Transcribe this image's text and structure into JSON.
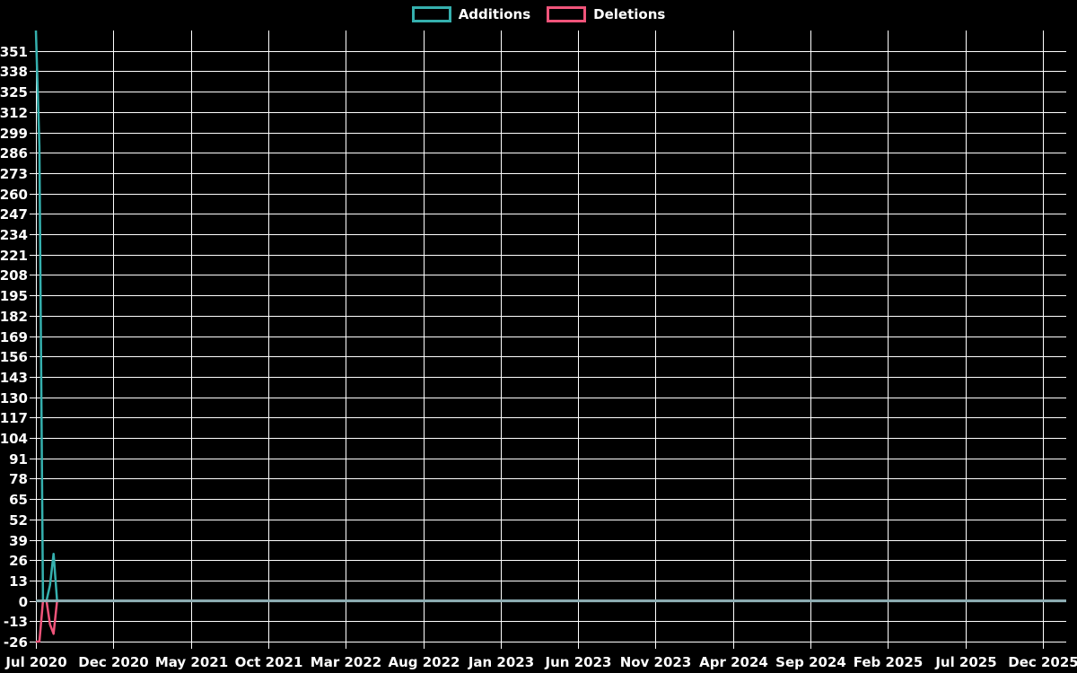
{
  "legend": {
    "items": [
      {
        "label": "Additions",
        "color": "#35b0ae"
      },
      {
        "label": "Deletions",
        "color": "#f0547a"
      }
    ]
  },
  "chart_data": {
    "type": "line",
    "title": "",
    "xlabel": "",
    "ylabel": "",
    "x_ticks": [
      "Jul 2020",
      "Dec 2020",
      "May 2021",
      "Oct 2021",
      "Mar 2022",
      "Aug 2022",
      "Jan 2023",
      "Jun 2023",
      "Nov 2023",
      "Apr 2024",
      "Sep 2024",
      "Feb 2025",
      "Jul 2025",
      "Dec 2025"
    ],
    "y_ticks": [
      351,
      338,
      325,
      312,
      299,
      286,
      273,
      260,
      247,
      234,
      221,
      208,
      195,
      182,
      169,
      156,
      143,
      130,
      117,
      104,
      91,
      78,
      65,
      52,
      39,
      26,
      13,
      0,
      -13,
      -26
    ],
    "ylim": [
      -26,
      364
    ],
    "x_domain_weeks": [
      0,
      292
    ],
    "x_unit": "weeks since Jul 2020",
    "grid": true,
    "legend_position": "top-center",
    "background": "#000000",
    "grid_color": "#ffffff",
    "text_color": "#ffffff",
    "zero_line_color": "#8fb0b6",
    "series": [
      {
        "name": "Additions",
        "color": "#35b0ae",
        "points": [
          [
            0,
            364
          ],
          [
            1,
            290
          ],
          [
            2,
            0
          ],
          [
            3,
            0
          ],
          [
            4,
            10
          ],
          [
            5,
            30
          ],
          [
            6,
            0
          ],
          [
            292,
            0
          ]
        ]
      },
      {
        "name": "Deletions",
        "color": "#f0547a",
        "points": [
          [
            0,
            -26
          ],
          [
            1,
            -26
          ],
          [
            2,
            0
          ],
          [
            3,
            0
          ],
          [
            4,
            -15
          ],
          [
            5,
            -21
          ],
          [
            6,
            0
          ],
          [
            292,
            0
          ]
        ]
      }
    ]
  }
}
